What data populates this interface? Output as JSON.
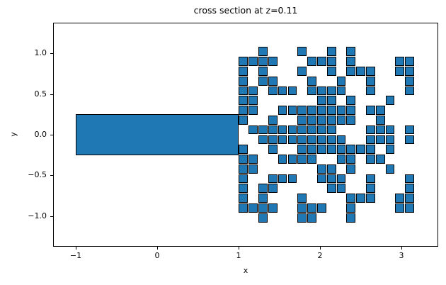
{
  "window": {
    "background": "#ffffff"
  },
  "chart_data": {
    "type": "scatter",
    "title": "cross section at z=0.11",
    "xlabel": "x",
    "ylabel": "y",
    "xlim": [
      -1.278,
      3.452
    ],
    "ylim": [
      -1.374,
      1.374
    ],
    "xticks": [
      -1,
      0,
      1,
      2,
      3
    ],
    "xtick_labels": [
      "−1",
      "0",
      "1",
      "2",
      "3"
    ],
    "yticks": [
      -1.0,
      -0.5,
      0.0,
      0.5,
      1.0
    ],
    "ytick_labels": [
      "−1.0",
      "−0.5",
      "0.0",
      "0.5",
      "1.0"
    ],
    "grid": false,
    "legend": false,
    "fill_color": "#1f77b4",
    "edge_color": "#000000",
    "rod": {
      "x0": -1.0,
      "x1": 1.0,
      "y0": -0.25,
      "y1": 0.25
    },
    "cell_size": 0.12,
    "grid_x0": 1.0,
    "grid_y_top": 1.08,
    "cells_by_row": [
      [
        2,
        6,
        9,
        11
      ],
      [
        0,
        1,
        2,
        3,
        7,
        8,
        9,
        11,
        16,
        17
      ],
      [
        0,
        2,
        6,
        9,
        11,
        12,
        13,
        16,
        17
      ],
      [
        0,
        2,
        3,
        7,
        10,
        13,
        17
      ],
      [
        0,
        1,
        3,
        4,
        5,
        7,
        8,
        9,
        10,
        13,
        17
      ],
      [
        0,
        1,
        8,
        9,
        11,
        15
      ],
      [
        0,
        1,
        4,
        5,
        6,
        7,
        8,
        9,
        10,
        11,
        13,
        14
      ],
      [
        0,
        3,
        6,
        7,
        8,
        9,
        10,
        11,
        14
      ],
      [
        1,
        2,
        3,
        4,
        5,
        6,
        7,
        8,
        9,
        13,
        14,
        15,
        17
      ],
      [
        2,
        3,
        4,
        5,
        6,
        7,
        8,
        9,
        10,
        13,
        14,
        15,
        17
      ],
      [
        0,
        3,
        6,
        7,
        8,
        9,
        10,
        11,
        12,
        13,
        15
      ],
      [
        0,
        1,
        4,
        5,
        6,
        7,
        10,
        11,
        13,
        14
      ],
      [
        0,
        1,
        8,
        9,
        11,
        15
      ],
      [
        0,
        3,
        4,
        5,
        8,
        9,
        10,
        13,
        17
      ],
      [
        0,
        2,
        3,
        9,
        10,
        13,
        17
      ],
      [
        0,
        2,
        6,
        11,
        12,
        13,
        16,
        17
      ],
      [
        0,
        1,
        2,
        3,
        6,
        7,
        8,
        11,
        16,
        17
      ],
      [
        2,
        6,
        7,
        11
      ]
    ]
  }
}
